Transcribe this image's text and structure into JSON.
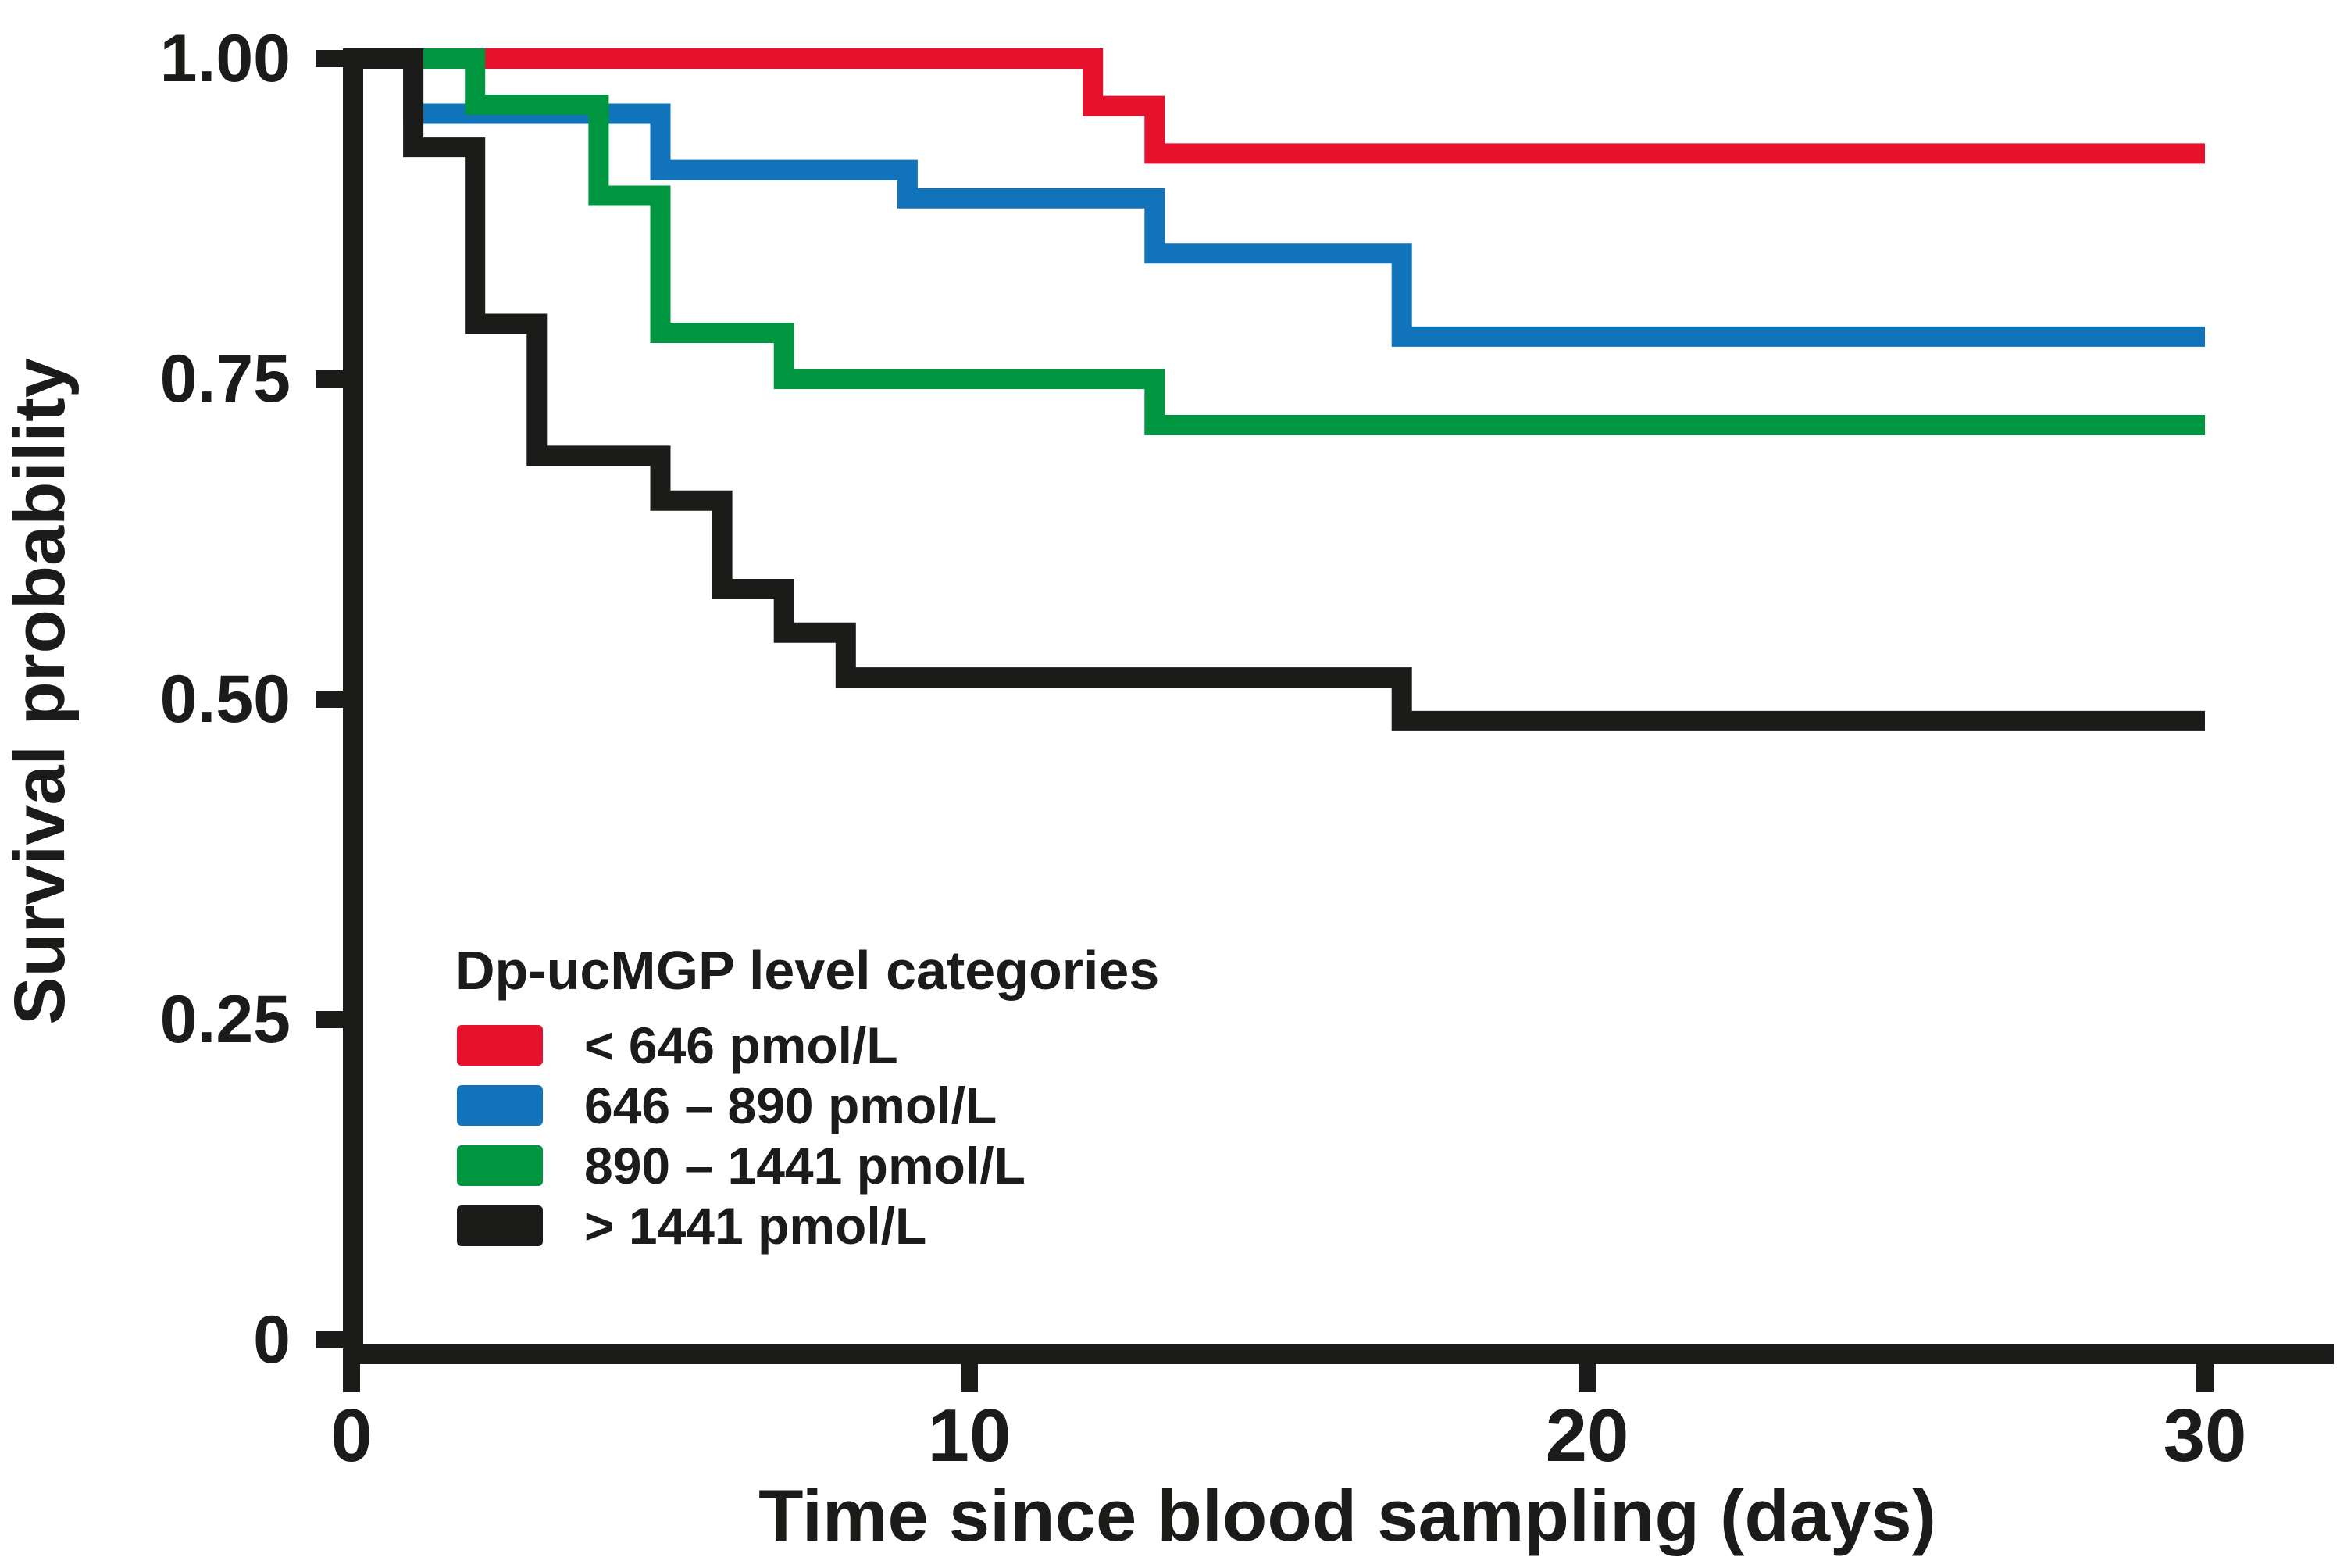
{
  "chart_data": {
    "type": "line",
    "subtype": "kaplan-meier-step",
    "title": "",
    "xlabel": "Time since blood sampling (days)",
    "ylabel": "Survival probability",
    "xlim": [
      0,
      30
    ],
    "ylim": [
      0,
      1
    ],
    "xticks": [
      0,
      10,
      20,
      30
    ],
    "ytick_labels": [
      "1.00",
      "0.75",
      "0.50",
      "0.25",
      "0"
    ],
    "ytick_values": [
      1.0,
      0.75,
      0.5,
      0.25,
      0
    ],
    "grid": false,
    "legend_title": "Dp-ucMGP level categories",
    "legend_position": "inside-lower-left",
    "axis_color": "#1b1b19",
    "series": [
      {
        "key": "lt-646",
        "name": "< 646 pmol/L",
        "color": "#e8112d",
        "steps": [
          [
            0,
            1.0
          ],
          [
            12,
            0.963
          ],
          [
            13,
            0.926
          ],
          [
            30,
            0.926
          ]
        ]
      },
      {
        "key": "646-890",
        "name": "646 – 890 pmol/L",
        "color": "#1173ba",
        "steps": [
          [
            0,
            1.0
          ],
          [
            1,
            0.957
          ],
          [
            5,
            0.913
          ],
          [
            9,
            0.891
          ],
          [
            13,
            0.848
          ],
          [
            17,
            0.783
          ],
          [
            30,
            0.783
          ]
        ]
      },
      {
        "key": "890-1441",
        "name": "890 – 1441 pmol/L",
        "color": "#009640",
        "steps": [
          [
            0,
            1.0
          ],
          [
            2,
            0.964
          ],
          [
            4,
            0.893
          ],
          [
            5,
            0.786
          ],
          [
            7,
            0.75
          ],
          [
            13,
            0.714
          ],
          [
            30,
            0.714
          ]
        ]
      },
      {
        "key": "gt-1441",
        "name": "> 1441 pmol/L",
        "color": "#1b1b19",
        "steps": [
          [
            0,
            1.0
          ],
          [
            1,
            0.931
          ],
          [
            2,
            0.793
          ],
          [
            3,
            0.69
          ],
          [
            5,
            0.655
          ],
          [
            6,
            0.586
          ],
          [
            7,
            0.552
          ],
          [
            8,
            0.517
          ],
          [
            17,
            0.483
          ],
          [
            30,
            0.483
          ]
        ]
      }
    ]
  }
}
